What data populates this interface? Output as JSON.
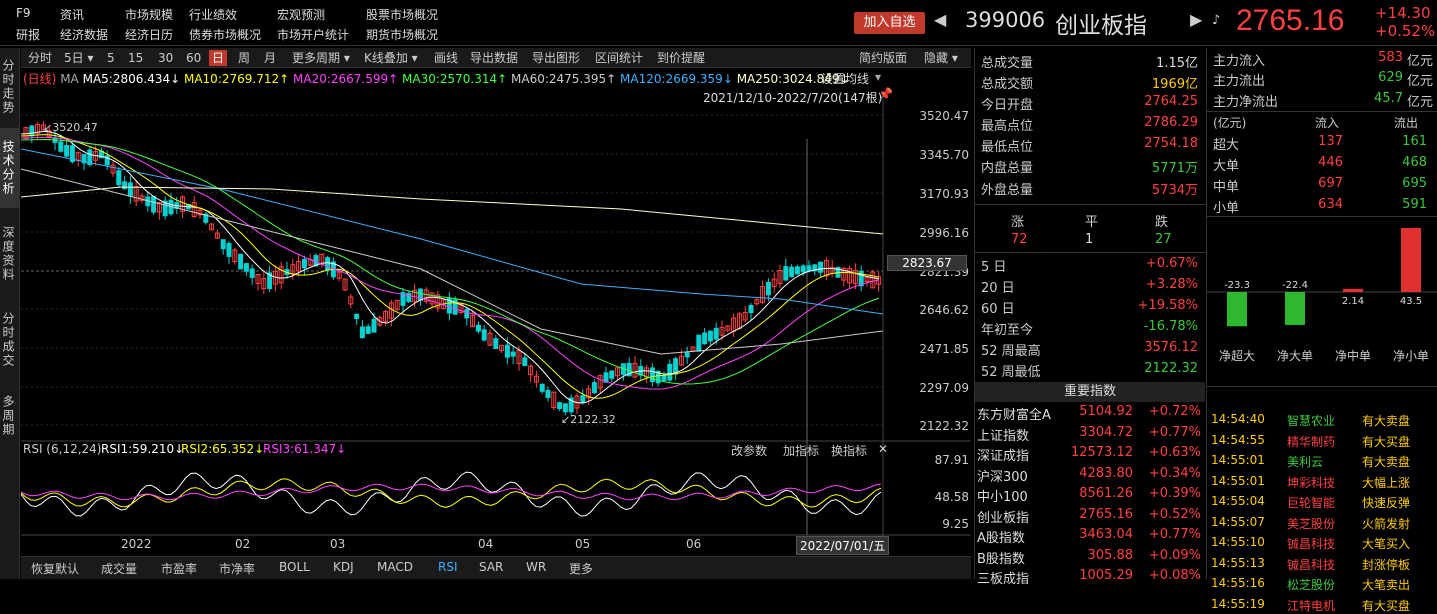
{
  "top_menu": [
    {
      "label": "F9"
    },
    {
      "label": "资讯"
    },
    {
      "label": "市场规模"
    },
    {
      "label": "行业绩效"
    },
    {
      "label": "宏观预测"
    },
    {
      "label": "股票市场概况"
    },
    {
      "label": "研报"
    },
    {
      "label": "经济数据"
    },
    {
      "label": "经济日历"
    },
    {
      "label": "债券市场概况"
    },
    {
      "label": "市场开户统计"
    },
    {
      "label": "期货市场概况"
    }
  ],
  "header": {
    "add_label": "加入自选",
    "code": "399006",
    "name": "创业板指",
    "price": "2765.16",
    "change": "+14.30",
    "change_pct": "+0.52%"
  },
  "side_nav": [
    {
      "label": "分时走势"
    },
    {
      "label": "技术分析"
    },
    {
      "label": "深度资料"
    },
    {
      "label": "分时成交"
    },
    {
      "label": "多周期"
    }
  ],
  "period_bar": [
    {
      "label": "分时"
    },
    {
      "label": "5日 ▾"
    },
    {
      "label": "5"
    },
    {
      "label": "15"
    },
    {
      "label": "30"
    },
    {
      "label": "60"
    },
    {
      "label": "日"
    },
    {
      "label": "周"
    },
    {
      "label": "月"
    },
    {
      "label": "更多周期 ▾"
    },
    {
      "label": "K线叠加 ▾"
    },
    {
      "label": "画线"
    },
    {
      "label": "导出数据"
    },
    {
      "label": "导出图形"
    },
    {
      "label": "区间统计"
    },
    {
      "label": "到价提醒"
    },
    {
      "label": "简约版面"
    },
    {
      "label": "隐藏 ▾"
    }
  ],
  "ma_legend": {
    "kind": "(日线)",
    "ma": "MA",
    "ma5": "MA5:2806.434↓",
    "ma10": "MA10:2769.712↑",
    "ma20": "MA20:2667.599↑",
    "ma30": "MA30:2570.314↑",
    "ma60": "MA60:2475.395↑",
    "ma120": "MA120:2669.359↓",
    "ma250": "MA250:3024.849↓",
    "settings": "设置均线"
  },
  "range_label": "2021/12/10-2022/7/20(147根)",
  "price_axis": [
    "3520.47",
    "3345.70",
    "3170.93",
    "2996.16",
    "2821.39",
    "2646.62",
    "2471.85",
    "2297.09",
    "2122.32"
  ],
  "cursor_price": "2823.67",
  "hi_label": "3520.47",
  "lo_label": "2122.32",
  "rsi_legend": {
    "title": "RSI (6,12,24)",
    "rsi1": "RSI1:59.210↓",
    "rsi2": "RSI2:65.352↓",
    "rsi3": "RSI3:61.347↓",
    "btn1": "改参数",
    "btn2": "加指标",
    "btn3": "换指标",
    "close": "✕"
  },
  "rsi_axis": [
    "87.91",
    "48.58",
    "9.25"
  ],
  "x_axis": [
    "2022",
    "02",
    "03",
    "04",
    "05",
    "06"
  ],
  "cursor_date": "2022/07/01/五",
  "bottom_tabs": [
    {
      "label": "恢复默认"
    },
    {
      "label": "成交量"
    },
    {
      "label": "市盈率"
    },
    {
      "label": "市净率"
    },
    {
      "label": "BOLL"
    },
    {
      "label": "KDJ"
    },
    {
      "label": "MACD"
    },
    {
      "label": "RSI"
    },
    {
      "label": "SAR"
    },
    {
      "label": "WR"
    },
    {
      "label": "更多"
    }
  ],
  "stats": [
    {
      "k": "总成交量",
      "v": "1.15亿"
    },
    {
      "k": "总成交额",
      "v": "1969亿"
    },
    {
      "k": "今日开盘",
      "v": "2764.25"
    },
    {
      "k": "最高点位",
      "v": "2786.29"
    },
    {
      "k": "最低点位",
      "v": "2754.18"
    },
    {
      "k": "内盘总量",
      "v": "5771万"
    },
    {
      "k": "外盘总量",
      "v": "5734万"
    }
  ],
  "breadth": {
    "up_label": "涨",
    "flat_label": "平",
    "down_label": "跌",
    "up": "72",
    "flat": "1",
    "down": "27"
  },
  "periods": [
    {
      "k": "5 日",
      "v": "+0.67%"
    },
    {
      "k": "20 日",
      "v": "+3.28%"
    },
    {
      "k": "60 日",
      "v": "+19.58%"
    },
    {
      "k": "年初至今",
      "v": "-16.78%"
    },
    {
      "k": "52 周最高",
      "v": "3576.12"
    },
    {
      "k": "52 周最低",
      "v": "2122.32"
    }
  ],
  "indices_title": "重要指数",
  "indices": [
    {
      "n": "东方财富全A",
      "p": "5104.92",
      "c": "+0.72%"
    },
    {
      "n": "上证指数",
      "p": "3304.72",
      "c": "+0.77%"
    },
    {
      "n": "深证成指",
      "p": "12573.12",
      "c": "+0.63%"
    },
    {
      "n": "沪深300",
      "p": "4283.80",
      "c": "+0.34%"
    },
    {
      "n": "中小100",
      "p": "8561.26",
      "c": "+0.39%"
    },
    {
      "n": "创业板指",
      "p": "2765.16",
      "c": "+0.52%"
    },
    {
      "n": "A股指数",
      "p": "3463.04",
      "c": "+0.77%"
    },
    {
      "n": "B股指数",
      "p": "305.88",
      "c": "+0.09%"
    },
    {
      "n": "三板成指",
      "p": "1005.29",
      "c": "+0.08%"
    }
  ],
  "flow": [
    {
      "k": "主力流入",
      "v": "583",
      "u": "亿元"
    },
    {
      "k": "主力流出",
      "v": "629",
      "u": "亿元"
    },
    {
      "k": "主力净流出",
      "v": "45.7",
      "u": "亿元"
    }
  ],
  "flow_unit": "(亿元)",
  "flow_in": "流入",
  "flow_out": "流出",
  "flow_table": [
    {
      "k": "超大",
      "i": "137",
      "o": "161"
    },
    {
      "k": "大单",
      "i": "446",
      "o": "468"
    },
    {
      "k": "中单",
      "i": "697",
      "o": "695"
    },
    {
      "k": "小单",
      "i": "634",
      "o": "591"
    }
  ],
  "chart_data": {
    "type": "bar",
    "categories": [
      "净超大",
      "净大单",
      "净中单",
      "净小单"
    ],
    "values": [
      -23.3,
      -22.4,
      2.14,
      43.5
    ],
    "labels": [
      "-23.3",
      "-22.4",
      "2.14",
      "43.5"
    ]
  },
  "ticks": [
    {
      "t": "14:54:40",
      "n": "智慧农业",
      "s": "有大卖盘"
    },
    {
      "t": "14:54:55",
      "n": "精华制药",
      "s": "有大买盘"
    },
    {
      "t": "14:55:01",
      "n": "美利云",
      "s": "有大卖盘"
    },
    {
      "t": "14:55:01",
      "n": "坤彩科技",
      "s": "大幅上涨"
    },
    {
      "t": "14:55:04",
      "n": "巨轮智能",
      "s": "快速反弹"
    },
    {
      "t": "14:55:07",
      "n": "美芝股份",
      "s": "火箭发射"
    },
    {
      "t": "14:55:10",
      "n": "铖昌科技",
      "s": "大笔买入"
    },
    {
      "t": "14:55:13",
      "n": "铖昌科技",
      "s": "封涨停板"
    },
    {
      "t": "14:55:16",
      "n": "松芝股份",
      "s": "大笔卖出"
    },
    {
      "t": "14:55:19",
      "n": "江特电机",
      "s": "有大买盘"
    }
  ],
  "colors": {
    "up": "#ff4040",
    "down": "#00d2d2",
    "ma5": "#ffffff",
    "ma10": "#ffff00",
    "ma20": "#ff40ff",
    "ma30": "#40ff40",
    "ma60": "#cccccc",
    "ma120": "#3ab0ff",
    "ma250": "#ffffcc"
  }
}
